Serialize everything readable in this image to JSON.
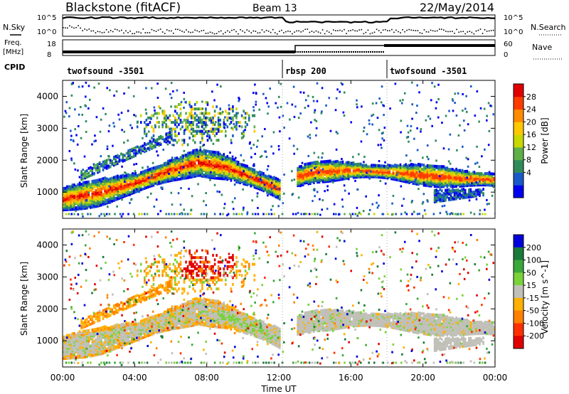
{
  "header": {
    "title": "Blackstone (fitACF)",
    "beam": "Beam 13",
    "date": "22/May/2014"
  },
  "summary": {
    "nsky_label": "N.Sky",
    "nsearch_label": "N.Search",
    "nsky_tick_hi": "10^5",
    "nsky_tick_lo": "10^0",
    "nsearch_tick_hi": "10^5",
    "nsearch_tick_lo": "10^0",
    "freq_label": "Freq.",
    "freq_unit": "[MHz]",
    "freq_tick_hi": "18",
    "freq_tick_lo": "8",
    "nave_label": "Nave",
    "nave_tick_hi": "60",
    "nave_tick_lo": "0",
    "cpid_label": "CPID"
  },
  "cpid_segments": [
    {
      "label": "twofsound -3501",
      "start_h": 0
    },
    {
      "label": "rbsp 200",
      "start_h": 12.2
    },
    {
      "label": "twofsound -3501",
      "start_h": 18.0
    }
  ],
  "x_axis": {
    "label": "Time UT",
    "ticks": [
      "00:00",
      "04:00",
      "08:00",
      "12:00",
      "16:00",
      "20:00",
      "00:00"
    ]
  },
  "chart_data": [
    {
      "type": "heatmap",
      "title": "",
      "xlabel": "Time UT",
      "ylabel": "Slant Range [km]",
      "xlim": [
        0,
        24
      ],
      "ylim": [
        180,
        4500
      ],
      "yticks": [
        "4000",
        "3000",
        "2000",
        "1000"
      ],
      "colorbar": {
        "label": "Power [dB]",
        "ticks": [
          "28",
          "24",
          "20",
          "16",
          "12",
          "8",
          "4"
        ],
        "colors": [
          "#0000f0",
          "#1a5ac8",
          "#2f8c5a",
          "#5fb04a",
          "#c8d800",
          "#ffc800",
          "#ff8c00",
          "#ff3c00",
          "#e00000"
        ]
      },
      "main_echo_band_km": [
        {
          "x": 0,
          "y": 750
        },
        {
          "x": 2,
          "y": 950
        },
        {
          "x": 4,
          "y": 1250
        },
        {
          "x": 6,
          "y": 1650
        },
        {
          "x": 7.5,
          "y": 1900
        },
        {
          "x": 9,
          "y": 1750
        },
        {
          "x": 11,
          "y": 1300
        },
        {
          "x": 12,
          "y": 1050
        },
        {
          "x": 13,
          "y": 1450
        },
        {
          "x": 14,
          "y": 1600
        },
        {
          "x": 16,
          "y": 1650
        },
        {
          "x": 18,
          "y": 1600
        },
        {
          "x": 20,
          "y": 1500
        },
        {
          "x": 22,
          "y": 1400
        },
        {
          "x": 24,
          "y": 1350
        }
      ]
    },
    {
      "type": "heatmap",
      "title": "",
      "xlabel": "Time UT",
      "ylabel": "Slant Range [km]",
      "xlim": [
        0,
        24
      ],
      "ylim": [
        180,
        4500
      ],
      "yticks": [
        "4000",
        "3000",
        "2000",
        "1000"
      ],
      "colorbar": {
        "label": "Velocity [m s^-1]",
        "ticks": [
          "200",
          "100",
          "50",
          "15",
          "-15",
          "-50",
          "-100",
          "-200"
        ],
        "colors": [
          "#0000dc",
          "#1a7a3a",
          "#3aa83a",
          "#7ad23a",
          "#c0c0b8",
          "#ffb000",
          "#ff8000",
          "#ff3000",
          "#e00000"
        ]
      }
    }
  ]
}
